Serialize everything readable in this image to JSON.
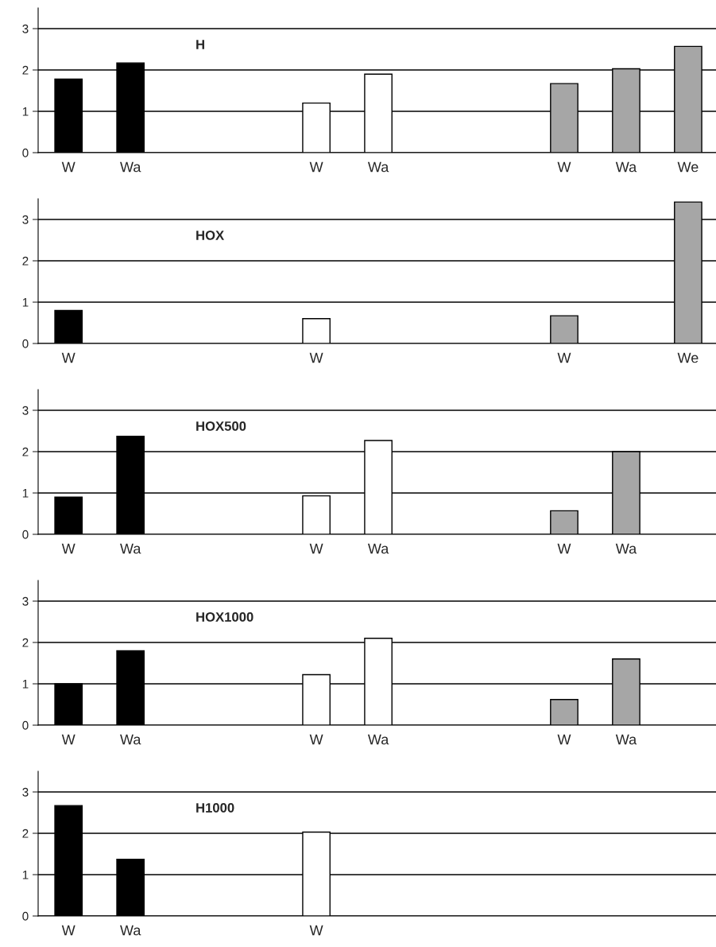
{
  "chart_data": [
    {
      "type": "bar",
      "title": "H",
      "categories": [
        "W",
        "Wa",
        null,
        null,
        "W",
        "Wa",
        null,
        null,
        "W",
        "Wa",
        "We"
      ],
      "values": [
        1.78,
        2.17,
        null,
        null,
        1.2,
        1.9,
        null,
        null,
        1.67,
        2.03,
        2.57
      ],
      "colors": [
        "#000000",
        "#000000",
        "#000000",
        "#000000",
        "#ffffff",
        "#ffffff",
        "#ffffff",
        "#ffffff",
        "#a6a6a6",
        "#a6a6a6",
        "#a6a6a6"
      ],
      "ylim": [
        0,
        3.5
      ],
      "yticks": [
        0,
        1,
        2,
        3
      ],
      "grid": "y"
    },
    {
      "type": "bar",
      "title": "HOX",
      "categories": [
        "W",
        null,
        null,
        null,
        "W",
        null,
        null,
        null,
        "W",
        null,
        "We"
      ],
      "values": [
        0.8,
        null,
        null,
        null,
        0.6,
        null,
        null,
        null,
        0.67,
        null,
        3.42
      ],
      "colors": [
        "#000000",
        "#000000",
        "#000000",
        "#000000",
        "#ffffff",
        "#ffffff",
        "#ffffff",
        "#ffffff",
        "#a6a6a6",
        "#a6a6a6",
        "#a6a6a6"
      ],
      "ylim": [
        0,
        3.5
      ],
      "yticks": [
        0,
        1,
        2,
        3
      ],
      "grid": "y"
    },
    {
      "type": "bar",
      "title": "HOX500",
      "categories": [
        "W",
        "Wa",
        null,
        null,
        "W",
        "Wa",
        null,
        null,
        "W",
        "Wa",
        null
      ],
      "values": [
        0.9,
        2.37,
        null,
        null,
        0.93,
        2.27,
        null,
        null,
        0.57,
        2.0,
        null
      ],
      "colors": [
        "#000000",
        "#000000",
        "#000000",
        "#000000",
        "#ffffff",
        "#ffffff",
        "#ffffff",
        "#ffffff",
        "#a6a6a6",
        "#a6a6a6",
        "#a6a6a6"
      ],
      "ylim": [
        0,
        3.5
      ],
      "yticks": [
        0,
        1,
        2,
        3
      ],
      "grid": "y"
    },
    {
      "type": "bar",
      "title": "HOX1000",
      "categories": [
        "W",
        "Wa",
        null,
        null,
        "W",
        "Wa",
        null,
        null,
        "W",
        "Wa",
        null
      ],
      "values": [
        1.0,
        1.8,
        null,
        null,
        1.22,
        2.1,
        null,
        null,
        0.62,
        1.6,
        null
      ],
      "colors": [
        "#000000",
        "#000000",
        "#000000",
        "#000000",
        "#ffffff",
        "#ffffff",
        "#ffffff",
        "#ffffff",
        "#a6a6a6",
        "#a6a6a6",
        "#a6a6a6"
      ],
      "ylim": [
        0,
        3.5
      ],
      "yticks": [
        0,
        1,
        2,
        3
      ],
      "grid": "y"
    },
    {
      "type": "bar",
      "title": "H1000",
      "categories": [
        "W",
        "Wa",
        null,
        null,
        "W",
        null,
        null,
        null,
        null,
        null,
        null
      ],
      "values": [
        2.67,
        1.37,
        null,
        null,
        2.03,
        null,
        null,
        null,
        null,
        null,
        null
      ],
      "colors": [
        "#000000",
        "#000000",
        "#000000",
        "#000000",
        "#ffffff",
        "#ffffff",
        "#ffffff",
        "#ffffff",
        "#a6a6a6",
        "#a6a6a6",
        "#a6a6a6"
      ],
      "ylim": [
        0,
        3.5
      ],
      "yticks": [
        0,
        1,
        2,
        3
      ],
      "grid": "y"
    }
  ]
}
